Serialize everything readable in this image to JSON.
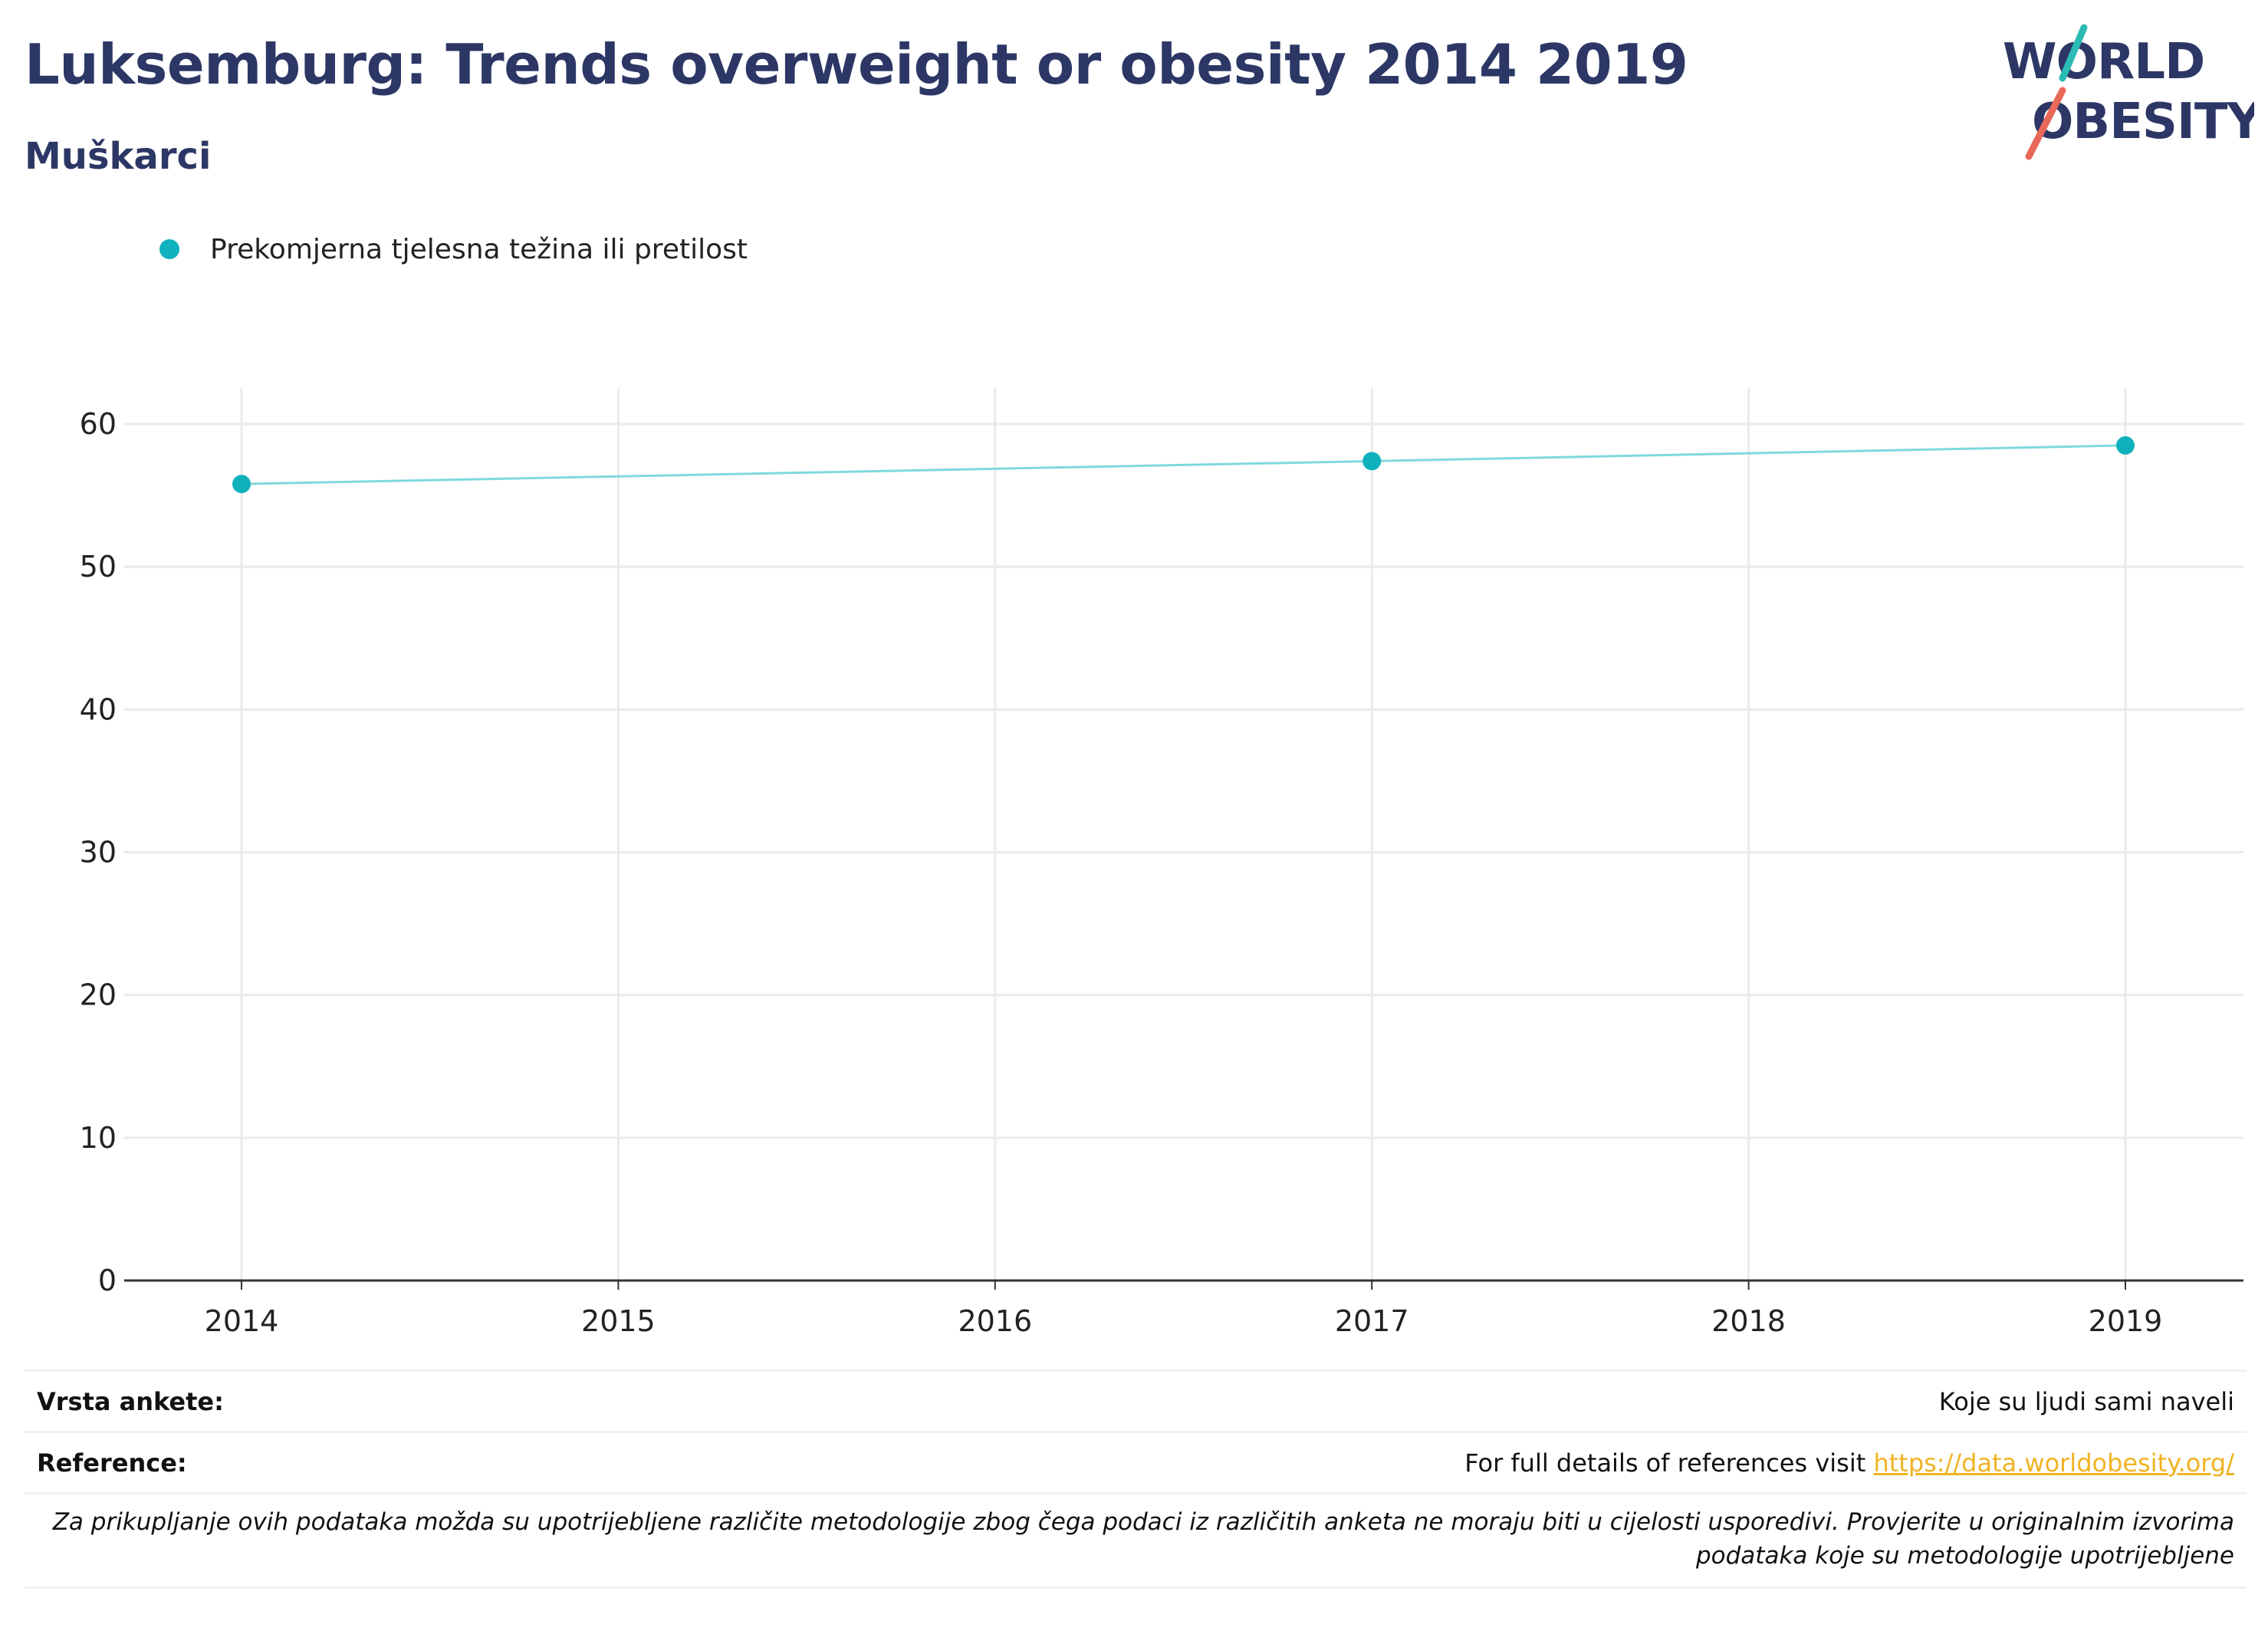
{
  "header": {
    "title": "Luksemburg: Trends overweight or obesity 2014 2019",
    "subtitle": "Muškarci"
  },
  "logo": {
    "line1": "WORLD",
    "line2": "OBESITY",
    "colors": {
      "text": "#2c3766",
      "slash_top": "#2bbbb4",
      "slash_bottom": "#e8695a"
    }
  },
  "legend": {
    "label": "Prekomjerna tjelesna težina ili pretilost",
    "color": "#0fb1bd"
  },
  "chart_data": {
    "type": "line",
    "x": [
      2014,
      2017,
      2019
    ],
    "series": [
      {
        "name": "Prekomjerna tjelesna težina ili pretilost",
        "values": [
          55.8,
          57.4,
          58.5
        ]
      }
    ],
    "xticks": [
      "2014",
      "2015",
      "2016",
      "2017",
      "2018",
      "2019"
    ],
    "yticks": [
      "0",
      "10",
      "20",
      "30",
      "40",
      "50",
      "60"
    ],
    "xlim": [
      2014,
      2019
    ],
    "ylim": [
      0,
      60
    ],
    "grid": true,
    "legend_position": "top-left",
    "colors": {
      "marker": "#0fb1bd",
      "line": "#7fd8dd",
      "grid": "#ebebeb",
      "axis": "#333333"
    }
  },
  "footer": {
    "survey_label": "Vrsta ankete:",
    "survey_value": "Koje su ljudi sami naveli",
    "reference_label": "Reference:",
    "reference_text": "For full details of references visit",
    "reference_link": "https://data.worldobesity.org/",
    "note": "Za prikupljanje ovih podataka možda su upotrijebljene različite metodologije zbog čega podaci iz različitih anketa ne moraju biti u cijelosti usporedivi. Provjerite u originalnim izvorima podataka koje su metodologije upotrijebljene"
  }
}
